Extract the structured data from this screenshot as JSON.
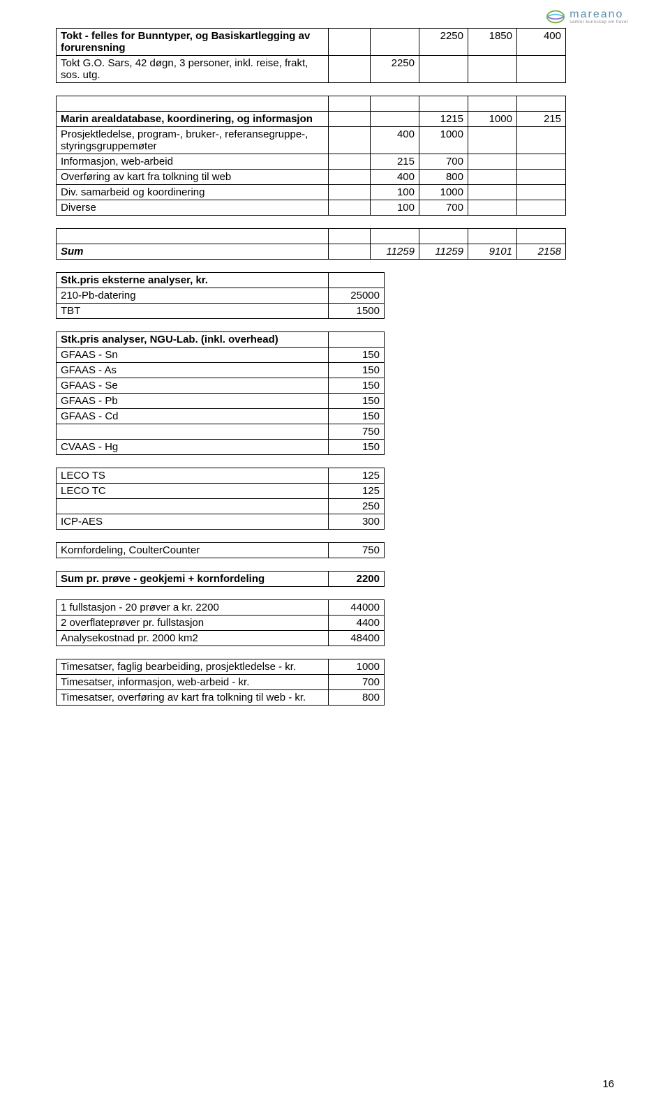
{
  "logo": {
    "name": "mareano",
    "tagline": "samler kunnskap om havet"
  },
  "table1": {
    "rows": [
      {
        "label": "Tokt - felles for Bunntyper, og Basiskartlegging av forurensning",
        "bold": true,
        "c3": "2250",
        "c4": "1850",
        "c5": "400"
      },
      {
        "label": "Tokt G.O. Sars, 42 døgn, 3 personer, inkl. reise, frakt, sos. utg.",
        "c2": "2250"
      }
    ]
  },
  "table2": {
    "rows": [
      {
        "empty": true
      },
      {
        "label": "Marin arealdatabase, koordinering, og informasjon",
        "bold": true,
        "c3": "1215",
        "c4": "1000",
        "c5": "215"
      },
      {
        "label": "Prosjektledelse, program-, bruker-, referansegruppe-, styringsgruppemøter",
        "c2": "400",
        "c3": "1000"
      },
      {
        "label": "Informasjon, web-arbeid",
        "c2": "215",
        "c3": "700"
      },
      {
        "label": "Overføring av kart fra tolkning til web",
        "c2": "400",
        "c3": "800"
      },
      {
        "label": "Div. samarbeid og koordinering",
        "c2": "100",
        "c3": "1000"
      },
      {
        "label": "Diverse",
        "c2": "100",
        "c3": "700"
      }
    ]
  },
  "table3": {
    "rows": [
      {
        "empty": true
      },
      {
        "label": "Sum",
        "bold": true,
        "italic": true,
        "c2": "11259",
        "c3": "11259",
        "c4": "9101",
        "c5": "2158",
        "valuesItalic": true
      }
    ]
  },
  "table4": {
    "rows": [
      {
        "label": "Stk.pris eksterne analyser, kr.",
        "bold": true
      },
      {
        "label": "210-Pb-datering",
        "c1": "25000"
      },
      {
        "label": "TBT",
        "c1": "1500"
      }
    ]
  },
  "table5": {
    "rows": [
      {
        "label": "Stk.pris analyser, NGU-Lab. (inkl. overhead)",
        "bold": true
      },
      {
        "label": "GFAAS - Sn",
        "c1": "150"
      },
      {
        "label": "GFAAS - As",
        "c1": "150"
      },
      {
        "label": "GFAAS - Se",
        "c1": "150"
      },
      {
        "label": "GFAAS - Pb",
        "c1": "150"
      },
      {
        "label": "GFAAS - Cd",
        "c1": "150"
      },
      {
        "label": "",
        "c1": "750"
      },
      {
        "label": "CVAAS - Hg",
        "c1": "150"
      }
    ]
  },
  "table6": {
    "rows": [
      {
        "label": "LECO TS",
        "c1": "125"
      },
      {
        "label": "LECO TC",
        "c1": "125"
      },
      {
        "label": "",
        "c1": "250"
      },
      {
        "label": "ICP-AES",
        "c1": "300"
      }
    ]
  },
  "table7": {
    "rows": [
      {
        "label": "Kornfordeling, CoulterCounter",
        "c1": "750"
      }
    ]
  },
  "table8": {
    "rows": [
      {
        "label": "Sum pr. prøve - geokjemi + kornfordeling",
        "bold": true,
        "c1": "2200",
        "valuesBold": true
      }
    ]
  },
  "table9": {
    "rows": [
      {
        "label": "1 fullstasjon - 20 prøver a kr. 2200",
        "c1": "44000"
      },
      {
        "label": "2 overflateprøver pr. fullstasjon",
        "c1": "4400"
      },
      {
        "label": "Analysekostnad pr. 2000 km2",
        "c1": "48400"
      }
    ]
  },
  "table10": {
    "rows": [
      {
        "label": "Timesatser, faglig bearbeiding, prosjektledelse - kr.",
        "c1": "1000"
      },
      {
        "label": "Timesatser, informasjon, web-arbeid - kr.",
        "c1": "700"
      },
      {
        "label": "Timesatser, overføring av kart fra tolkning til web - kr.",
        "c1": "800"
      }
    ]
  },
  "pageNumber": "16"
}
